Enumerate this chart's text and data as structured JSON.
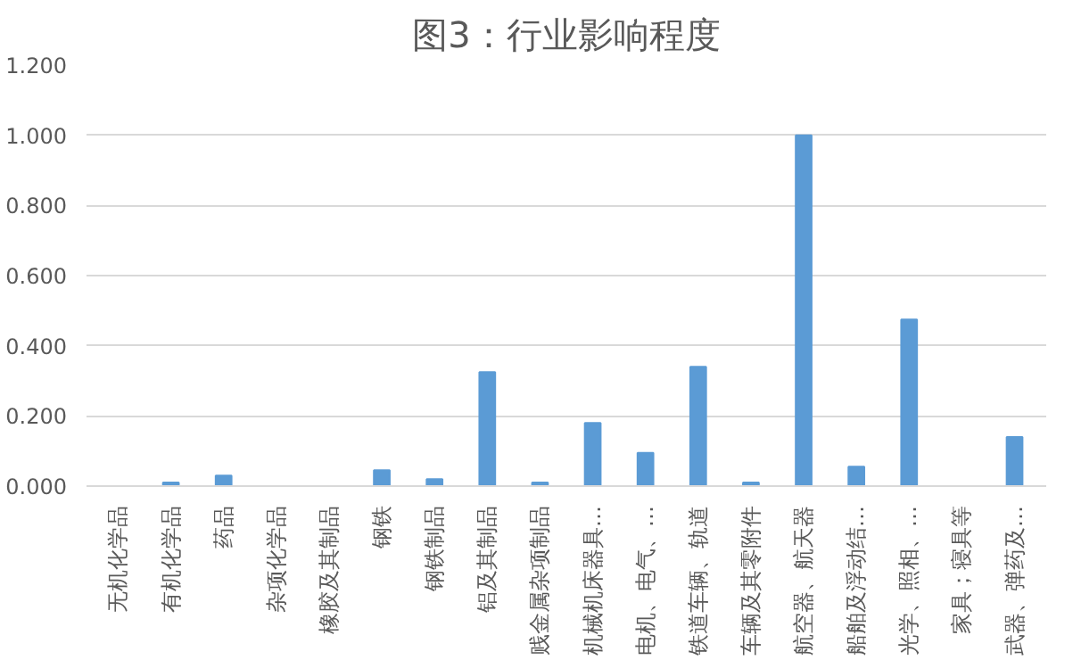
{
  "chart_data": {
    "type": "bar",
    "title": "图3：行业影响程度",
    "categories": [
      "无机化学品",
      "有机化学品",
      "药品",
      "杂项化学品",
      "橡胶及其制品",
      "钢铁",
      "钢铁制品",
      "铝及其制品",
      "贱金属杂项制品",
      "机械机床器具…",
      "电机、电气、…",
      "铁道车辆、轨道",
      "车辆及其零附件",
      "航空器、航天器",
      "船舶及浮动结…",
      "光学、照相、…",
      "家具；寝具等",
      "武器、弹药及…"
    ],
    "values": [
      0,
      0.01,
      0.03,
      0,
      0,
      0.045,
      0.02,
      0.325,
      0.01,
      0.18,
      0.095,
      0.34,
      0.01,
      1.0,
      0.055,
      0.475,
      0,
      0.14
    ],
    "color": "#5b9bd5",
    "ylim": [
      0,
      1.2
    ],
    "yticks": [
      {
        "value": 0,
        "label": "0.000"
      },
      {
        "value": 0.2,
        "label": "0.200"
      },
      {
        "value": 0.4,
        "label": "0.400"
      },
      {
        "value": 0.6,
        "label": "0.600"
      },
      {
        "value": 0.8,
        "label": "0.800"
      },
      {
        "value": 1.0,
        "label": "1.000"
      },
      {
        "value": 1.2,
        "label": "1.200"
      }
    ],
    "grid": "y"
  }
}
